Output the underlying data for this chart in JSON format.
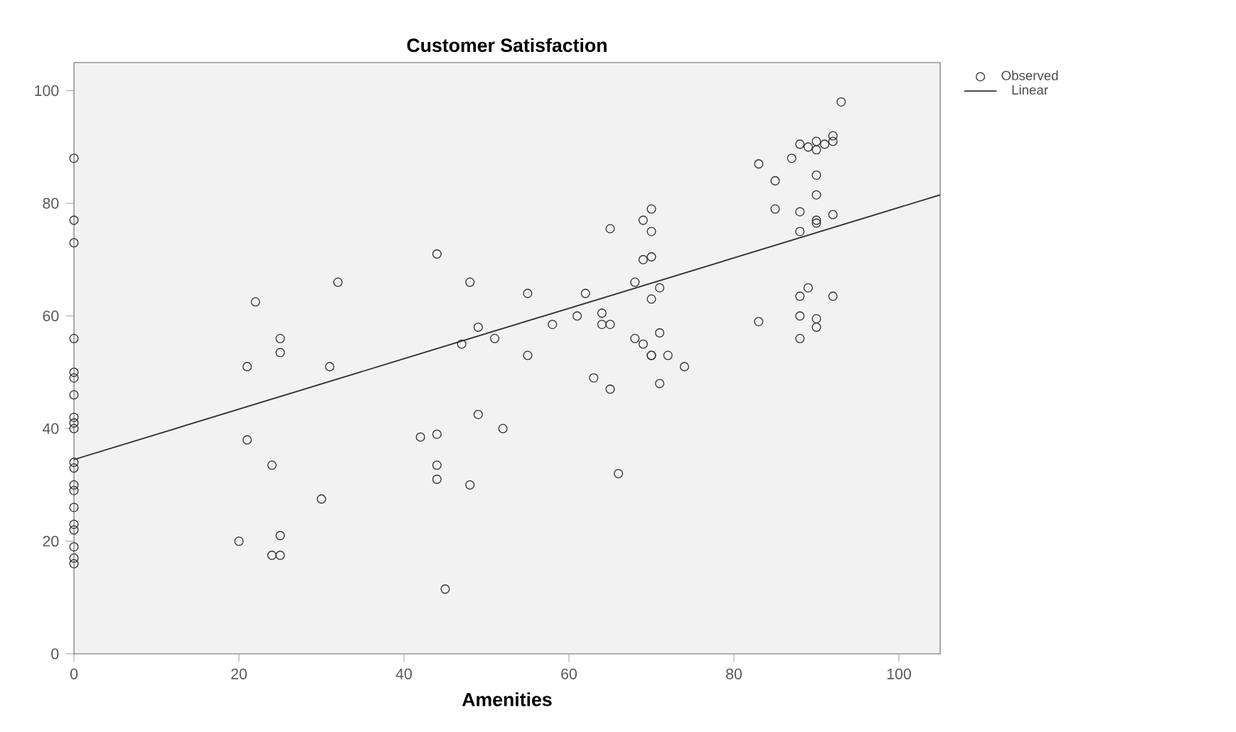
{
  "chart_data": {
    "type": "scatter",
    "title": "Customer Satisfaction",
    "xlabel": "Amenities",
    "xlim": [
      0,
      105
    ],
    "ylim": [
      0,
      105
    ],
    "xticks": [
      0,
      20,
      40,
      60,
      80,
      100
    ],
    "yticks": [
      0,
      20,
      40,
      60,
      80,
      100
    ],
    "grid": false,
    "legend": "top right",
    "series": [
      {
        "name": "Observed",
        "type": "scatter",
        "color": "#333333",
        "marker": "circle",
        "x": [
          0,
          0,
          0,
          0,
          0,
          0,
          0,
          0,
          0,
          0,
          0,
          0,
          0,
          0,
          0,
          0,
          0,
          0,
          0,
          0,
          20,
          21,
          21,
          22,
          24,
          24,
          25,
          25,
          25,
          25,
          30,
          31,
          32,
          42,
          44,
          44,
          44,
          44,
          45,
          47,
          48,
          48,
          49,
          49,
          51,
          52,
          55,
          55,
          58,
          61,
          62,
          63,
          64,
          64,
          65,
          65,
          65,
          66,
          68,
          68,
          69,
          69,
          69,
          70,
          70,
          70,
          70,
          70,
          70,
          71,
          71,
          71,
          72,
          74,
          83,
          83,
          85,
          85,
          87,
          88,
          88,
          88,
          88,
          88,
          88,
          89,
          89,
          90,
          90,
          90,
          90,
          90,
          90,
          90,
          90,
          91,
          92,
          92,
          92,
          92,
          93
        ],
        "values": [
          88,
          77,
          73,
          56,
          50,
          49,
          46,
          42,
          41,
          40,
          34,
          33,
          30,
          29,
          26,
          23,
          22,
          19,
          17,
          16,
          20,
          51,
          38,
          62.5,
          33.5,
          17.5,
          17.5,
          21,
          56,
          53.5,
          27.5,
          51,
          66,
          38.5,
          39,
          33.5,
          31,
          71,
          11.5,
          55,
          30,
          66,
          58,
          42.5,
          56,
          40,
          64,
          53,
          58.5,
          60,
          64,
          49,
          60.5,
          58.5,
          58.5,
          47,
          75.5,
          32,
          66,
          56,
          55,
          77,
          70,
          79,
          75,
          70.5,
          63,
          53,
          53,
          65,
          57,
          48,
          53,
          51,
          87,
          59,
          84,
          79,
          88,
          90.5,
          78.5,
          75,
          63.5,
          60,
          56,
          90,
          65,
          91,
          89.5,
          85,
          81.5,
          77,
          76.5,
          59.5,
          58,
          90.5,
          92,
          91,
          78,
          63.5,
          98
        ]
      },
      {
        "name": "Linear",
        "type": "line",
        "color": "#333333",
        "line_style": "solid",
        "x": [
          0,
          105
        ],
        "values": [
          34.5,
          81.5
        ]
      }
    ]
  }
}
